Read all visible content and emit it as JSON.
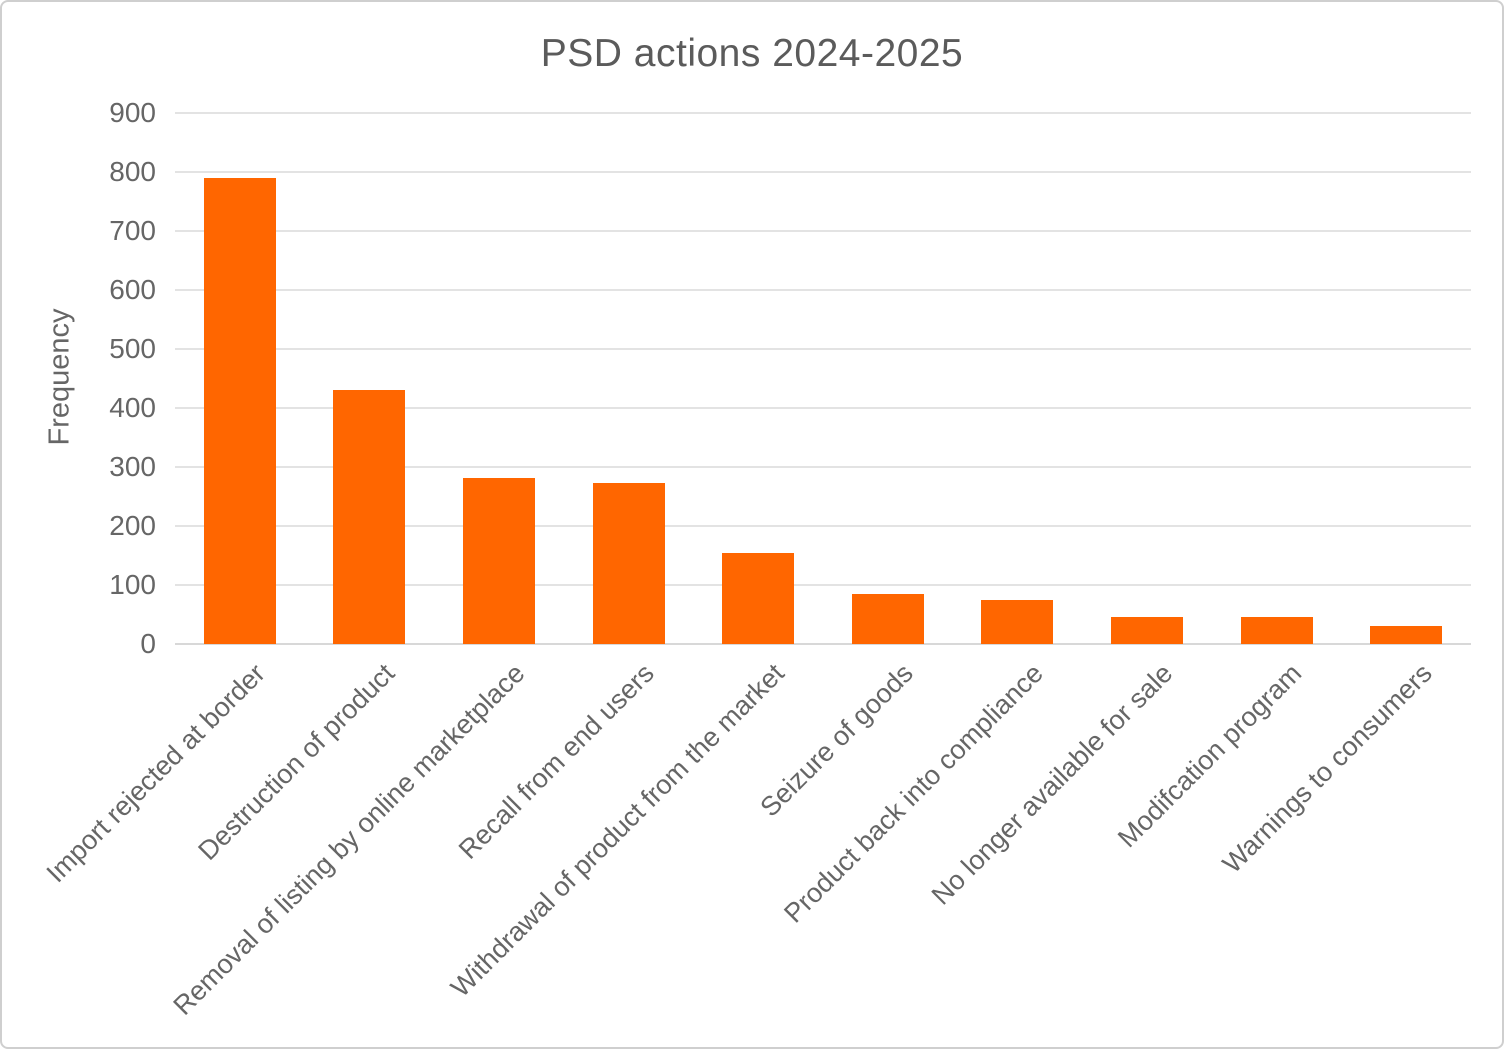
{
  "chart_data": {
    "type": "bar",
    "title": "PSD actions 2024-2025",
    "xlabel": "",
    "ylabel": "Frequency",
    "categories": [
      "Import rejected at border",
      "Destruction of product",
      "Removal of listing by online marketplace",
      "Recall from end users",
      "Withdrawal of product from the market",
      "Seizure of goods",
      "Product back into compliance",
      "No longer available for sale",
      "Modifcation program",
      "Warnings to consumers"
    ],
    "values": [
      790,
      430,
      282,
      273,
      155,
      85,
      75,
      46,
      45,
      30
    ],
    "ylim": [
      0,
      900
    ],
    "ytick_step": 100,
    "ytick_labels": [
      "0",
      "100",
      "200",
      "300",
      "400",
      "500",
      "600",
      "700",
      "800",
      "900"
    ],
    "grid": true,
    "legend": false,
    "x_label_rotation_deg": -45,
    "colors": {
      "bar": "#FF6600",
      "title_text": "#5b5b5b",
      "axis_text": "#666666",
      "gridline": "#e3e3e3",
      "baseline": "#d8d8d8",
      "canvas_border": "#cfcfcf"
    }
  }
}
